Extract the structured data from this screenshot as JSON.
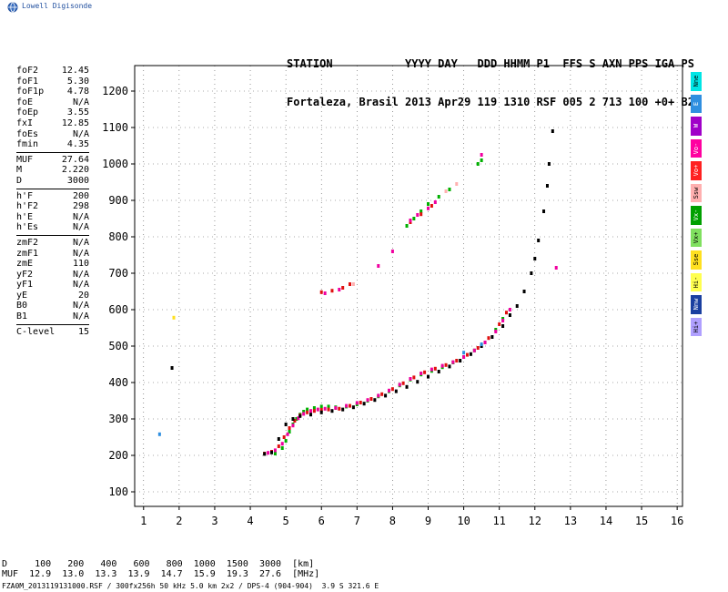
{
  "logo": {
    "text": "Lowell Digisonde",
    "icon": "globe-icon"
  },
  "header": {
    "line1": "STATION           YYYY DAY   DDD HHMM P1  FFS S AXN PPS IGA PS",
    "line2": "Fortaleza, Brasil 2013 Apr29 119 1310 RSF 005 2 713 100 +0+ B2"
  },
  "params": [
    {
      "label": "foF2",
      "value": "12.45"
    },
    {
      "label": "foF1",
      "value": "5.30"
    },
    {
      "label": "foF1p",
      "value": "4.78"
    },
    {
      "label": "foE",
      "value": "N/A"
    },
    {
      "label": "foEp",
      "value": "3.55"
    },
    {
      "label": "fxI",
      "value": "12.85"
    },
    {
      "label": "foEs",
      "value": "N/A"
    },
    {
      "label": "fmin",
      "value": "4.35"
    },
    {
      "sep": true
    },
    {
      "label": "MUF",
      "value": "27.64"
    },
    {
      "label": "M",
      "value": "2.220"
    },
    {
      "label": "D",
      "value": "3000"
    },
    {
      "sep": true
    },
    {
      "label": "h'F",
      "value": "200"
    },
    {
      "label": "h'F2",
      "value": "298"
    },
    {
      "label": "h'E",
      "value": "N/A"
    },
    {
      "label": "h'Es",
      "value": "N/A"
    },
    {
      "sep": true
    },
    {
      "label": "zmF2",
      "value": "N/A"
    },
    {
      "label": "zmF1",
      "value": "N/A"
    },
    {
      "label": "zmE",
      "value": "110"
    },
    {
      "label": "yF2",
      "value": "N/A"
    },
    {
      "label": "yF1",
      "value": "N/A"
    },
    {
      "label": "yE",
      "value": "20"
    },
    {
      "label": "B0",
      "value": "N/A"
    },
    {
      "label": "B1",
      "value": "N/A"
    },
    {
      "sep": true
    },
    {
      "label": "C-level",
      "value": "15"
    }
  ],
  "legend": [
    {
      "label": "Nne",
      "color": "#00e5e5"
    },
    {
      "label": "E",
      "color": "#2f8fe0"
    },
    {
      "label": "W",
      "color": "#a000c8"
    },
    {
      "label": "Vo-",
      "color": "#ff00a0"
    },
    {
      "label": "Vo+",
      "color": "#ff2020"
    },
    {
      "label": "Ssw",
      "color": "#ffb0b0"
    },
    {
      "label": "Vx-",
      "color": "#00a000"
    },
    {
      "label": "Vx+",
      "color": "#80e060"
    },
    {
      "label": "Sse",
      "color": "#ffe020"
    },
    {
      "label": "Hi-",
      "color": "#ffff50"
    },
    {
      "label": "Nnw",
      "color": "#1a3fa0"
    },
    {
      "label": "Hi+",
      "color": "#b0a0ff"
    }
  ],
  "muf_table": {
    "row1": "D     100   200   400   600   800  1000  1500  3000  [km]",
    "row2": "MUF  12.9  13.0  13.3  13.9  14.7  15.9  19.3  27.6  [MHz]"
  },
  "footer": "FZA0M_2013119131000.RSF / 300fx256h 50 kHz 5.0 km 2x2 / DPS-4 (904-904)  3.9 S 321.6 E",
  "chart_data": {
    "type": "scatter",
    "xlim": [
      0.75,
      16.15
    ],
    "ylim": [
      60,
      1270
    ],
    "x_ticks": [
      1,
      2,
      3,
      4,
      5,
      6,
      7,
      8,
      9,
      10,
      11,
      12,
      13,
      14,
      15,
      16
    ],
    "y_ticks": [
      100,
      200,
      300,
      400,
      500,
      600,
      700,
      800,
      900,
      1000,
      1100,
      1200
    ],
    "grid": true,
    "series": [
      {
        "color": "#00b000",
        "points": [
          [
            4.7,
            205
          ],
          [
            4.9,
            220
          ],
          [
            5.0,
            240
          ],
          [
            5.1,
            265
          ],
          [
            5.2,
            285
          ],
          [
            5.3,
            300
          ],
          [
            5.4,
            312
          ],
          [
            5.5,
            320
          ],
          [
            5.6,
            326
          ],
          [
            5.8,
            330
          ],
          [
            6.0,
            334
          ],
          [
            6.2,
            334
          ],
          [
            6.4,
            332
          ],
          [
            6.7,
            334
          ],
          [
            7.0,
            340
          ],
          [
            7.3,
            350
          ],
          [
            7.6,
            362
          ],
          [
            7.9,
            376
          ],
          [
            8.2,
            392
          ],
          [
            8.5,
            408
          ],
          [
            8.8,
            422
          ],
          [
            9.1,
            432
          ],
          [
            9.4,
            442
          ],
          [
            9.7,
            455
          ],
          [
            10.0,
            470
          ],
          [
            10.3,
            488
          ],
          [
            10.6,
            510
          ],
          [
            10.9,
            545
          ],
          [
            11.1,
            575
          ],
          [
            8.4,
            830
          ],
          [
            8.6,
            850
          ],
          [
            8.8,
            870
          ],
          [
            9.0,
            890
          ],
          [
            9.3,
            910
          ],
          [
            9.6,
            930
          ],
          [
            10.4,
            1000
          ],
          [
            10.5,
            1010
          ]
        ]
      },
      {
        "color": "#e01010",
        "points": [
          [
            4.4,
            205
          ],
          [
            4.6,
            210
          ],
          [
            4.8,
            225
          ],
          [
            4.95,
            250
          ],
          [
            5.1,
            275
          ],
          [
            5.25,
            295
          ],
          [
            5.4,
            310
          ],
          [
            5.6,
            318
          ],
          [
            5.8,
            322
          ],
          [
            6.0,
            325
          ],
          [
            6.2,
            326
          ],
          [
            6.5,
            328
          ],
          [
            6.8,
            336
          ],
          [
            7.1,
            345
          ],
          [
            7.4,
            355
          ],
          [
            7.7,
            368
          ],
          [
            8.0,
            382
          ],
          [
            8.3,
            398
          ],
          [
            8.6,
            414
          ],
          [
            8.9,
            428
          ],
          [
            9.2,
            438
          ],
          [
            9.5,
            448
          ],
          [
            9.8,
            460
          ],
          [
            10.1,
            476
          ],
          [
            10.4,
            495
          ],
          [
            10.7,
            522
          ],
          [
            11.0,
            560
          ],
          [
            11.2,
            592
          ],
          [
            6.0,
            648
          ],
          [
            6.3,
            652
          ],
          [
            6.6,
            660
          ],
          [
            6.8,
            670
          ],
          [
            8.5,
            840
          ],
          [
            8.8,
            862
          ],
          [
            9.1,
            885
          ]
        ]
      },
      {
        "color": "#f000a0",
        "points": [
          [
            4.5,
            207
          ],
          [
            4.7,
            214
          ],
          [
            4.9,
            232
          ],
          [
            5.05,
            258
          ],
          [
            5.2,
            282
          ],
          [
            5.35,
            302
          ],
          [
            5.5,
            314
          ],
          [
            5.7,
            322
          ],
          [
            5.9,
            326
          ],
          [
            6.1,
            328
          ],
          [
            6.4,
            330
          ],
          [
            6.7,
            336
          ],
          [
            7.0,
            344
          ],
          [
            7.3,
            352
          ],
          [
            7.6,
            364
          ],
          [
            7.9,
            378
          ],
          [
            8.2,
            394
          ],
          [
            8.5,
            410
          ],
          [
            8.8,
            425
          ],
          [
            9.1,
            436
          ],
          [
            9.4,
            446
          ],
          [
            9.7,
            456
          ],
          [
            10.0,
            470
          ],
          [
            10.3,
            488
          ],
          [
            10.6,
            510
          ],
          [
            10.9,
            540
          ],
          [
            11.1,
            570
          ],
          [
            11.3,
            600
          ],
          [
            6.1,
            645
          ],
          [
            6.5,
            655
          ],
          [
            7.6,
            720
          ],
          [
            8.0,
            760
          ],
          [
            8.5,
            845
          ],
          [
            8.7,
            860
          ],
          [
            9.0,
            878
          ],
          [
            9.2,
            895
          ],
          [
            10.5,
            1025
          ],
          [
            12.6,
            715
          ]
        ]
      },
      {
        "color": "#000000",
        "points": [
          [
            4.4,
            204
          ],
          [
            4.6,
            208
          ],
          [
            4.8,
            245
          ],
          [
            5.0,
            285
          ],
          [
            5.2,
            300
          ],
          [
            5.4,
            308
          ],
          [
            5.7,
            312
          ],
          [
            6.0,
            318
          ],
          [
            6.3,
            322
          ],
          [
            6.6,
            326
          ],
          [
            6.9,
            332
          ],
          [
            7.2,
            342
          ],
          [
            7.5,
            352
          ],
          [
            7.8,
            364
          ],
          [
            8.1,
            376
          ],
          [
            8.4,
            388
          ],
          [
            8.7,
            402
          ],
          [
            9.0,
            416
          ],
          [
            9.3,
            430
          ],
          [
            9.6,
            444
          ],
          [
            9.9,
            460
          ],
          [
            10.2,
            478
          ],
          [
            10.5,
            500
          ],
          [
            10.8,
            525
          ],
          [
            11.1,
            555
          ],
          [
            11.3,
            585
          ],
          [
            11.5,
            610
          ],
          [
            11.7,
            650
          ],
          [
            11.9,
            700
          ],
          [
            12.0,
            740
          ],
          [
            12.1,
            790
          ],
          [
            12.25,
            870
          ],
          [
            12.35,
            940
          ],
          [
            12.4,
            1000
          ],
          [
            12.5,
            1090
          ],
          [
            1.8,
            440
          ]
        ]
      },
      {
        "color": "#2f8fe0",
        "points": [
          [
            1.45,
            258
          ],
          [
            10.0,
            482
          ],
          [
            10.5,
            505
          ]
        ]
      },
      {
        "color": "#ffe020",
        "points": [
          [
            1.85,
            578
          ]
        ]
      },
      {
        "color": "#ffb0b0",
        "points": [
          [
            6.9,
            670
          ],
          [
            9.5,
            925
          ],
          [
            9.8,
            945
          ]
        ]
      }
    ]
  }
}
